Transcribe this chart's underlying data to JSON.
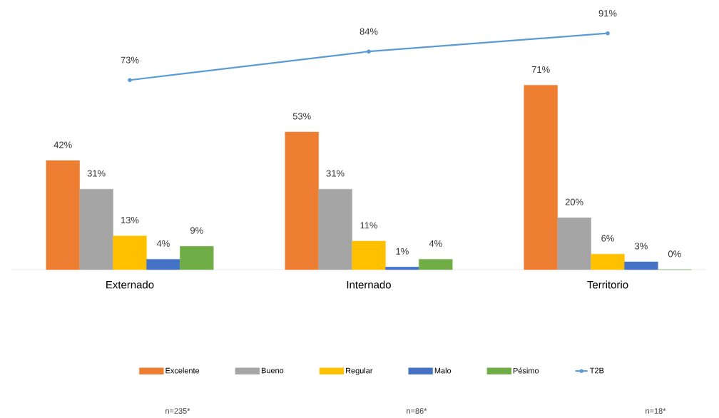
{
  "chart_data": {
    "type": "bar",
    "categories": [
      "Externado",
      "Internado",
      "Territorio"
    ],
    "series": [
      {
        "name": "Excelente",
        "color": "#ed7d31",
        "values": [
          42,
          53,
          71
        ],
        "value_labels": [
          "42%",
          "53%",
          "71%"
        ]
      },
      {
        "name": "Bueno",
        "color": "#a5a5a5",
        "values": [
          31,
          31,
          20
        ],
        "value_labels": [
          "31%",
          "31%",
          "20%"
        ]
      },
      {
        "name": "Regular",
        "color": "#ffc000",
        "values": [
          13,
          11,
          6
        ],
        "value_labels": [
          "13%",
          "11%",
          "6%"
        ]
      },
      {
        "name": "Malo",
        "color": "#4472c4",
        "values": [
          4,
          1,
          3
        ],
        "value_labels": [
          "4%",
          "1%",
          "3%"
        ]
      },
      {
        "name": "Pésimo",
        "color": "#70ad47",
        "values": [
          9,
          4,
          0
        ],
        "value_labels": [
          "9%",
          "4%",
          "0%"
        ]
      },
      {
        "name": "T2B",
        "type": "line",
        "color": "#5b9bd5",
        "marker": "circle",
        "values": [
          73,
          84,
          91
        ],
        "value_labels": [
          "73%",
          "84%",
          "91%"
        ]
      }
    ],
    "legend": "bottom",
    "annotations": [
      "n=235*",
      "n=86*",
      "n=18*"
    ]
  }
}
